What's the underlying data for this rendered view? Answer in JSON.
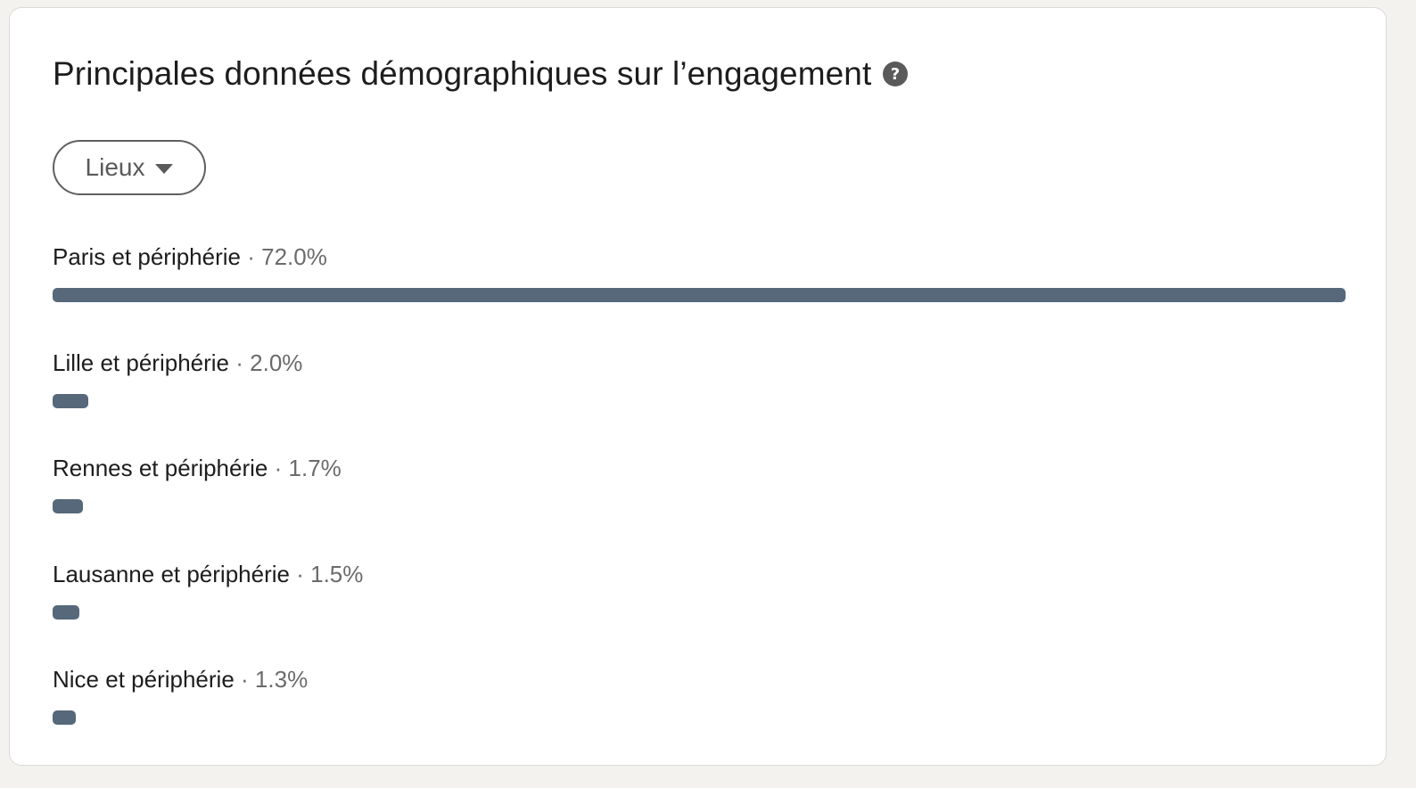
{
  "header": {
    "title": "Principales données démographiques sur l’engagement",
    "help_icon": "help-circle-icon"
  },
  "filter": {
    "label": "Lieux",
    "icon": "caret-down-icon"
  },
  "colors": {
    "bar": "#56687a",
    "text_primary": "#1d1d1d",
    "text_secondary": "#6b6b6b"
  },
  "separator": "·",
  "demographics": [
    {
      "name": "Paris et périphérie",
      "percent_label": "72.0%",
      "value": 72.0
    },
    {
      "name": "Lille et périphérie",
      "percent_label": "2.0%",
      "value": 2.0
    },
    {
      "name": "Rennes et périphérie",
      "percent_label": "1.7%",
      "value": 1.7
    },
    {
      "name": "Lausanne et périphérie",
      "percent_label": "1.5%",
      "value": 1.5
    },
    {
      "name": "Nice et périphérie",
      "percent_label": "1.3%",
      "value": 1.3
    }
  ]
}
